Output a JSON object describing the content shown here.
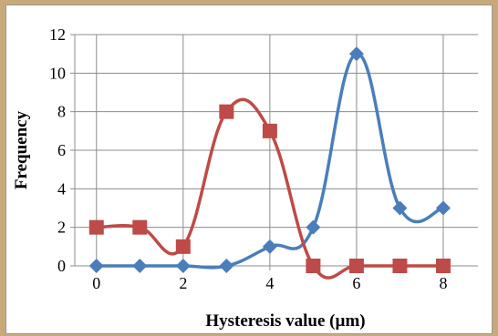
{
  "chart_data": {
    "type": "scatter",
    "title": "",
    "xlabel": "Hysteresis value (µm)",
    "ylabel": "Frequency",
    "xlim": [
      0,
      8
    ],
    "ylim": [
      0,
      12
    ],
    "xticks": [
      0,
      2,
      4,
      6,
      8
    ],
    "yticks": [
      0,
      2,
      4,
      6,
      8,
      10,
      12
    ],
    "grid": "vertical and horizontal",
    "legend": "none",
    "line_style": "smoothed",
    "series": [
      {
        "color": "#4a7ebb",
        "marker": "diamond",
        "x": [
          0,
          1,
          2,
          3,
          4,
          5,
          6,
          7,
          8
        ],
        "y": [
          0,
          0,
          0,
          0,
          1,
          2,
          11,
          3,
          3
        ]
      },
      {
        "color": "#be4b48",
        "marker": "square",
        "x": [
          0,
          1,
          2,
          3,
          4,
          5,
          6,
          7,
          8
        ],
        "y": [
          2,
          2,
          1,
          8,
          7,
          0,
          0,
          0,
          0
        ]
      }
    ]
  }
}
